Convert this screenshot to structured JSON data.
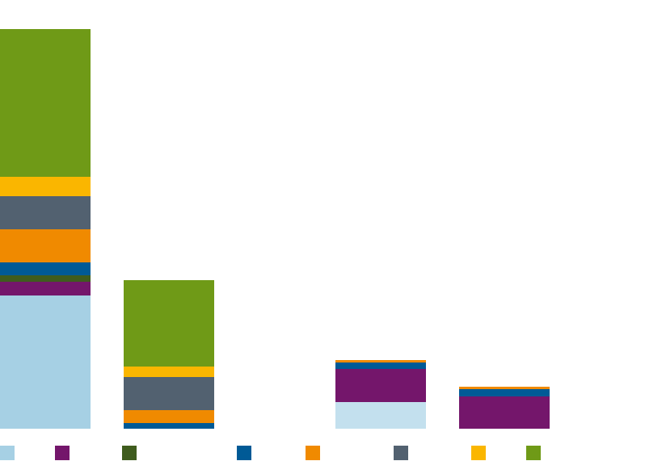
{
  "chart_data": {
    "type": "bar",
    "stacked": true,
    "title": "",
    "xlabel": "",
    "ylabel": "",
    "ylim": [
      0,
      500
    ],
    "grid": false,
    "legend_position": "bottom",
    "categories": [
      "",
      "",
      "",
      ""
    ],
    "series": [
      {
        "name": "",
        "color": "#a6d0e4",
        "values": [
          165,
          0,
          33,
          0
        ]
      },
      {
        "name": "",
        "color": "#74166b",
        "values": [
          17,
          0,
          41,
          40
        ]
      },
      {
        "name": "",
        "color": "#3f5c1e",
        "values": [
          8,
          0,
          0,
          0
        ]
      },
      {
        "name": "",
        "color": "#005a96",
        "values": [
          16,
          7,
          8,
          9
        ]
      },
      {
        "name": "",
        "color": "#f08a00",
        "values": [
          41,
          16,
          3,
          3
        ]
      },
      {
        "name": "",
        "color": "#526170",
        "values": [
          41,
          41,
          0,
          0
        ]
      },
      {
        "name": "",
        "color": "#fab600",
        "values": [
          24,
          13,
          0,
          0
        ]
      },
      {
        "name": "",
        "color": "#6f9a17",
        "values": [
          183,
          107,
          0,
          0
        ]
      }
    ]
  }
}
